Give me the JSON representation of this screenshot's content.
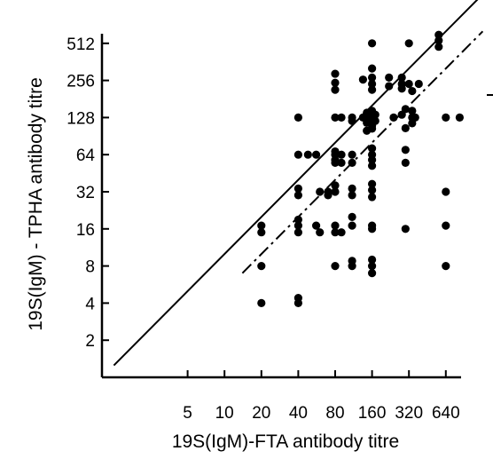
{
  "chart_data": {
    "type": "scatter",
    "title": "",
    "xlabel": "19S(IgM)-FTA antibody titre",
    "ylabel": "19S(IgM) - TPHA antibody titre",
    "x_scale": "log2",
    "y_scale": "log2",
    "x_ticks": [
      5,
      10,
      20,
      40,
      80,
      160,
      320,
      640
    ],
    "x_tick_labels": [
      "5",
      "10",
      "20",
      "40",
      "80",
      "160",
      "320",
      "640"
    ],
    "y_ticks": [
      2,
      4,
      8,
      16,
      32,
      64,
      128,
      256,
      512
    ],
    "y_tick_labels": [
      "2",
      "4",
      "8",
      "16",
      "32",
      "64",
      "128",
      "256",
      "512"
    ],
    "grid": false,
    "legend": "none",
    "point_color": "#000000",
    "reference_lines": [
      {
        "style": "solid",
        "x": [
          1.25,
          1280
        ],
        "y": [
          1.25,
          1280
        ]
      },
      {
        "style": "dash-dot",
        "x": [
          14,
          1280
        ],
        "y": [
          7,
          640
        ]
      }
    ],
    "points": [
      [
        20,
        4
      ],
      [
        20,
        8
      ],
      [
        20,
        15
      ],
      [
        20,
        17
      ],
      [
        40,
        4
      ],
      [
        40,
        4.4
      ],
      [
        40,
        15
      ],
      [
        40,
        17
      ],
      [
        40,
        19
      ],
      [
        40,
        30
      ],
      [
        40,
        34
      ],
      [
        40,
        64
      ],
      [
        40,
        128
      ],
      [
        48,
        64
      ],
      [
        56,
        17
      ],
      [
        56,
        64
      ],
      [
        60,
        15
      ],
      [
        60,
        32
      ],
      [
        70,
        30
      ],
      [
        70,
        32
      ],
      [
        80,
        8
      ],
      [
        80,
        15
      ],
      [
        80,
        17
      ],
      [
        80,
        32
      ],
      [
        80,
        36
      ],
      [
        80,
        55
      ],
      [
        80,
        58
      ],
      [
        80,
        64
      ],
      [
        80,
        68
      ],
      [
        80,
        128
      ],
      [
        80,
        215
      ],
      [
        80,
        245
      ],
      [
        80,
        290
      ],
      [
        90,
        15
      ],
      [
        90,
        55
      ],
      [
        90,
        64
      ],
      [
        90,
        128
      ],
      [
        110,
        8
      ],
      [
        110,
        8.8
      ],
      [
        110,
        17
      ],
      [
        110,
        20
      ],
      [
        110,
        30
      ],
      [
        110,
        34
      ],
      [
        110,
        55
      ],
      [
        110,
        64
      ],
      [
        110,
        120
      ],
      [
        110,
        128
      ],
      [
        135,
        128
      ],
      [
        135,
        260
      ],
      [
        145,
        100
      ],
      [
        145,
        116
      ],
      [
        145,
        125
      ],
      [
        145,
        132
      ],
      [
        145,
        140
      ],
      [
        160,
        7
      ],
      [
        160,
        8
      ],
      [
        160,
        9
      ],
      [
        160,
        16
      ],
      [
        160,
        17
      ],
      [
        160,
        29
      ],
      [
        160,
        33
      ],
      [
        160,
        37
      ],
      [
        160,
        52
      ],
      [
        160,
        58
      ],
      [
        160,
        64
      ],
      [
        160,
        72
      ],
      [
        160,
        104
      ],
      [
        160,
        110
      ],
      [
        160,
        116
      ],
      [
        160,
        124
      ],
      [
        160,
        135
      ],
      [
        160,
        145
      ],
      [
        160,
        215
      ],
      [
        160,
        240
      ],
      [
        160,
        270
      ],
      [
        160,
        320
      ],
      [
        160,
        512
      ],
      [
        170,
        120
      ],
      [
        170,
        135
      ],
      [
        220,
        230
      ],
      [
        220,
        270
      ],
      [
        240,
        128
      ],
      [
        280,
        135
      ],
      [
        280,
        220
      ],
      [
        280,
        240
      ],
      [
        280,
        270
      ],
      [
        300,
        16
      ],
      [
        300,
        55
      ],
      [
        300,
        70
      ],
      [
        300,
        105
      ],
      [
        300,
        150
      ],
      [
        320,
        240
      ],
      [
        320,
        512
      ],
      [
        340,
        115
      ],
      [
        340,
        128
      ],
      [
        340,
        145
      ],
      [
        340,
        210
      ],
      [
        360,
        128
      ],
      [
        385,
        240
      ],
      [
        560,
        480
      ],
      [
        560,
        540
      ],
      [
        560,
        600
      ],
      [
        640,
        8
      ],
      [
        640,
        17
      ],
      [
        640,
        32
      ],
      [
        640,
        128
      ],
      [
        830,
        128
      ]
    ]
  }
}
